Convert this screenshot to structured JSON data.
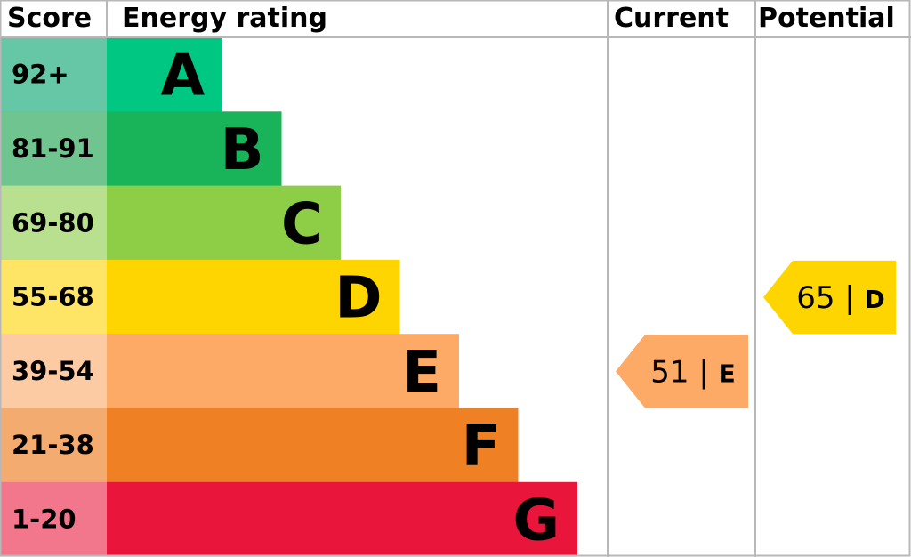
{
  "header": {
    "score": "Score",
    "rating": "Energy rating",
    "current": "Current",
    "potential": "Potential"
  },
  "chart_data": {
    "type": "bar",
    "categories": [
      "A",
      "B",
      "C",
      "D",
      "E",
      "F",
      "G"
    ],
    "score_ranges": [
      "92+",
      "81-91",
      "69-80",
      "55-68",
      "39-54",
      "21-38",
      "1-20"
    ],
    "band_colors": [
      "#00c781",
      "#19b459",
      "#8dce46",
      "#ffd500",
      "#fcaa65",
      "#ef8023",
      "#e9153b"
    ],
    "score_colors": [
      "#66c7a6",
      "#6fc48f",
      "#b8e08e",
      "#ffe566",
      "#fdcba3",
      "#f4ab70",
      "#f2778c"
    ],
    "current": {
      "value": 51,
      "band": "E",
      "label_value": "51",
      "label_band": "E",
      "color": "#fcaa65"
    },
    "potential": {
      "value": 65,
      "band": "D",
      "label_value": "65",
      "label_band": "D",
      "color": "#ffd500"
    }
  }
}
